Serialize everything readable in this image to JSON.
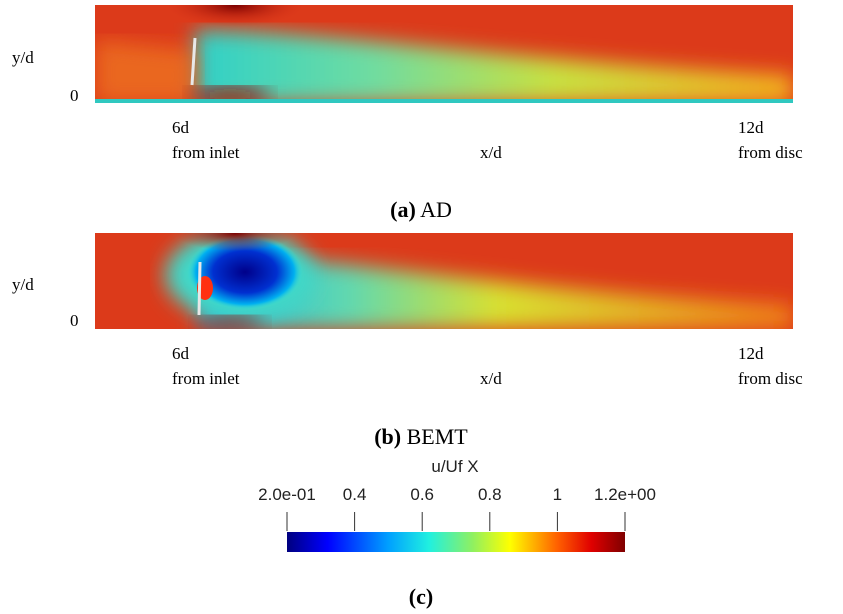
{
  "panels": [
    {
      "y_label": "y/d",
      "zero_label": "0",
      "x_start": "6d",
      "x_start_note": "from inlet",
      "x_label": "x/d",
      "x_end": "12d",
      "x_end_note": "from disc",
      "caption_letter": "(a)",
      "caption": "AD"
    },
    {
      "y_label": "y/d",
      "zero_label": "0",
      "x_start": "6d",
      "x_start_note": "from inlet",
      "x_label": "x/d",
      "x_end": "12d",
      "x_end_note": "from disc",
      "caption_letter": "(b)",
      "caption": "BEMT"
    }
  ],
  "colorbar": {
    "title": "u/Uf X",
    "lim": [
      0.2,
      1.2
    ],
    "ticks": [
      {
        "value": 0.2,
        "label": "2.0e-01"
      },
      0.4,
      0.6,
      0.8,
      1,
      {
        "value": 1.2,
        "label": "1.2e+00"
      }
    ]
  },
  "caption": "(c)"
}
